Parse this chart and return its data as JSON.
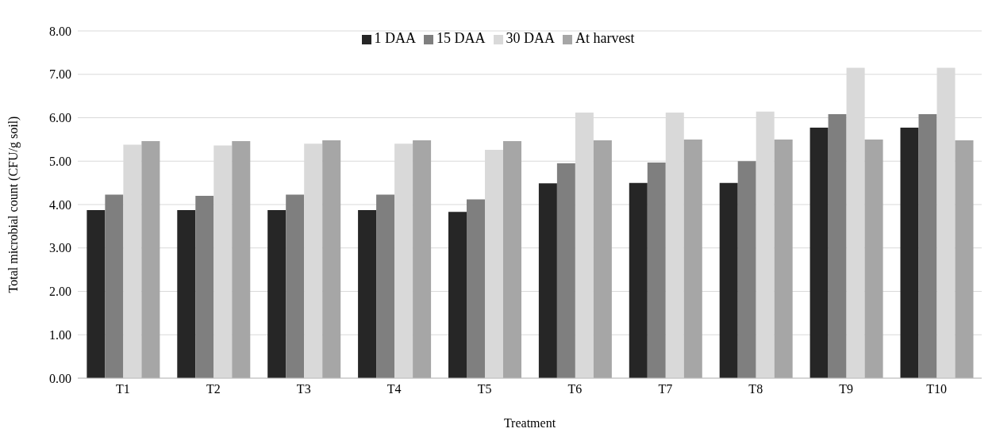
{
  "chart_data": {
    "type": "bar",
    "xlabel": "Treatment",
    "ylabel": "Total microbial count (CFU/g soil)",
    "categories": [
      "T1",
      "T2",
      "T3",
      "T4",
      "T5",
      "T6",
      "T7",
      "T8",
      "T9",
      "T10"
    ],
    "series": [
      {
        "name": "1 DAA",
        "color": "#262626",
        "values": [
          3.87,
          3.87,
          3.87,
          3.87,
          3.83,
          4.49,
          4.5,
          4.5,
          5.77,
          5.77
        ]
      },
      {
        "name": "15 DAA",
        "color": "#7f7f7f",
        "values": [
          4.23,
          4.2,
          4.23,
          4.23,
          4.12,
          4.95,
          4.97,
          5.0,
          6.08,
          6.08
        ]
      },
      {
        "name": "30 DAA",
        "color": "#d9d9d9",
        "values": [
          5.38,
          5.36,
          5.4,
          5.4,
          5.26,
          6.12,
          6.12,
          6.14,
          7.15,
          7.15
        ]
      },
      {
        "name": "At harvest",
        "color": "#a6a6a6",
        "values": [
          5.46,
          5.46,
          5.48,
          5.48,
          5.46,
          5.48,
          5.5,
          5.5,
          5.5,
          5.48
        ]
      }
    ],
    "ylim": [
      0,
      8
    ],
    "yticks": [
      {
        "value": 0,
        "label": "0.00"
      },
      {
        "value": 1,
        "label": "1.00"
      },
      {
        "value": 2,
        "label": "2.00"
      },
      {
        "value": 3,
        "label": "3.00"
      },
      {
        "value": 4,
        "label": "4.00"
      },
      {
        "value": 5,
        "label": "5.00"
      },
      {
        "value": 6,
        "label": "6.00"
      },
      {
        "value": 7,
        "label": "7.00"
      },
      {
        "value": 8,
        "label": "8.00"
      }
    ],
    "grid": "y",
    "legend": "top"
  }
}
